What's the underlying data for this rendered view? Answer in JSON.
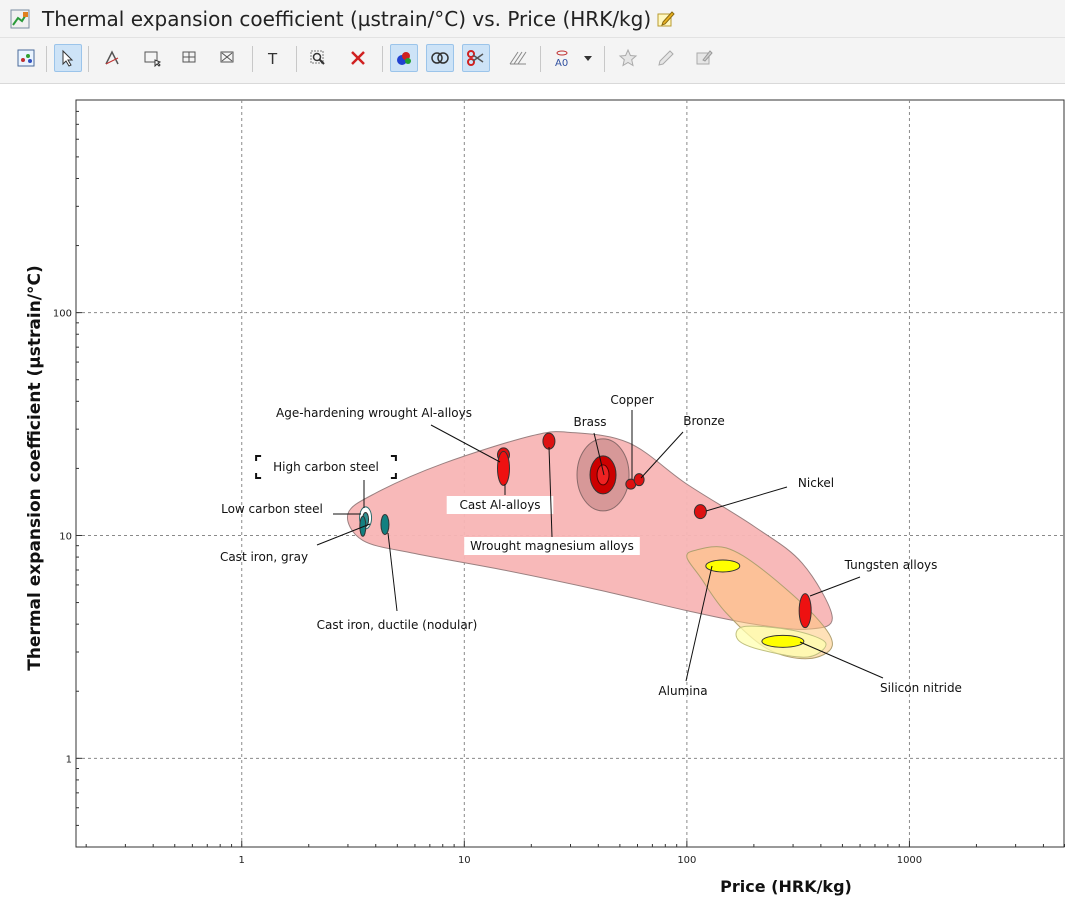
{
  "window": {
    "title": "Thermal expansion coefficient (µstrain/°C) vs. Price (HRK/kg)"
  },
  "toolbar": {
    "buttons": [
      {
        "name": "chart-settings-icon"
      },
      {
        "name": "select-pointer-icon",
        "active": true
      },
      {
        "name": "line-tool-icon"
      },
      {
        "name": "box-select-icon"
      },
      {
        "name": "grid-select-icon"
      },
      {
        "name": "delete-selection-icon"
      },
      {
        "name": "text-tool-icon"
      },
      {
        "name": "zoom-icon"
      },
      {
        "name": "clear-icon"
      },
      {
        "name": "colored-bubbles-icon",
        "active": true
      },
      {
        "name": "overlap-icon",
        "active": true
      },
      {
        "name": "scissors-icon",
        "active": true
      },
      {
        "name": "hatch-icon"
      },
      {
        "name": "label-icon"
      },
      {
        "name": "dropdown-arrow-icon"
      },
      {
        "name": "favorite-icon"
      },
      {
        "name": "pencil-icon"
      },
      {
        "name": "note-icon"
      }
    ]
  },
  "chart_data": {
    "type": "scatter",
    "title": "",
    "xlabel": "Price (HRK/kg)",
    "ylabel": "Thermal expansion coefficient (µstrain/°C)",
    "xscale": "log",
    "yscale": "log",
    "xlim": [
      0.18,
      5000
    ],
    "ylim": [
      0.4,
      900
    ],
    "x_ticks": [
      1,
      10,
      100,
      1000
    ],
    "x_tick_labels": [
      "1",
      "10",
      "100",
      "1000"
    ],
    "y_ticks": [
      1,
      10,
      100
    ],
    "y_tick_labels": [
      "1",
      "10",
      "100"
    ],
    "grid": true,
    "envelopes": [
      {
        "family": "metals",
        "color": "#f8b5b5",
        "stroke": "#9a8080",
        "points": [
          [
            3.0,
            12.5
          ],
          [
            4.0,
            15.5
          ],
          [
            8,
            21
          ],
          [
            20,
            28
          ],
          [
            30,
            29
          ],
          [
            55,
            26
          ],
          [
            100,
            17
          ],
          [
            200,
            11
          ],
          [
            330,
            7.5
          ],
          [
            450,
            4.3
          ],
          [
            350,
            3.8
          ],
          [
            200,
            4.0
          ],
          [
            100,
            4.6
          ],
          [
            40,
            5.7
          ],
          [
            15,
            7.0
          ],
          [
            6,
            8.3
          ],
          [
            3.5,
            9.5
          ]
        ]
      },
      {
        "family": "ceramics",
        "color": "#ffc87e",
        "stroke": "#b0a070",
        "opacity": 0.55,
        "points": [
          [
            110,
            8.6
          ],
          [
            150,
            8.8
          ],
          [
            220,
            7.0
          ],
          [
            380,
            4.3
          ],
          [
            450,
            3.2
          ],
          [
            350,
            2.8
          ],
          [
            230,
            3.1
          ],
          [
            150,
            4.5
          ],
          [
            115,
            6.5
          ],
          [
            100,
            8.0
          ]
        ]
      },
      {
        "family": "ceramics-light",
        "color": "#ffffb0",
        "stroke": "#c0c080",
        "opacity": 0.75,
        "points": [
          [
            180,
            3.9
          ],
          [
            300,
            3.75
          ],
          [
            420,
            3.3
          ],
          [
            350,
            2.85
          ],
          [
            220,
            3.05
          ],
          [
            170,
            3.4
          ]
        ]
      }
    ],
    "materials": [
      {
        "name": "Low carbon steel",
        "x": 3.6,
        "y": 12.0,
        "color": "#ffffff",
        "stroke": "#2b6b6b"
      },
      {
        "name": "High carbon steel",
        "x": 3.6,
        "y": 11.8,
        "color": "#2f8f8f"
      },
      {
        "name": "Cast iron, gray",
        "x": 3.5,
        "y": 11.0,
        "color": "#138080"
      },
      {
        "name": "Cast iron, ductile (nodular)",
        "x": 4.4,
        "y": 11.2,
        "color": "#138080"
      },
      {
        "name": "Age-hardening wrought Al-alloys",
        "x": 15,
        "y": 23,
        "color": "#dd1111"
      },
      {
        "name": "Cast Al-alloys",
        "x": 15,
        "y": 20,
        "color": "#ee1111"
      },
      {
        "name": "Wrought magnesium alloys",
        "x": 24,
        "y": 26.5,
        "color": "#dd1111"
      },
      {
        "name": "Brass",
        "x": 42,
        "y": 18.7,
        "color": "#cc0000"
      },
      {
        "name": "Copper",
        "x": 56,
        "y": 17.0,
        "color": "#dd1111"
      },
      {
        "name": "Bronze",
        "x": 61,
        "y": 17.8,
        "color": "#dd1111"
      },
      {
        "name": "Nickel",
        "x": 115,
        "y": 12.8,
        "color": "#dd1111"
      },
      {
        "name": "Tungsten alloys",
        "x": 340,
        "y": 4.6,
        "color": "#ee1111"
      },
      {
        "name": "Alumina",
        "x": 145,
        "y": 7.3,
        "color": "#ffff00"
      },
      {
        "name": "Silicon nitride",
        "x": 270,
        "y": 3.35,
        "color": "#ffff00"
      }
    ],
    "labels": [
      "Age-hardening wrought Al-alloys",
      "High carbon steel",
      "Low carbon steel",
      "Cast iron, gray",
      "Cast iron, ductile (nodular)",
      "Cast Al-alloys",
      "Wrought magnesium alloys",
      "Brass",
      "Copper",
      "Bronze",
      "Nickel",
      "Tungsten alloys",
      "Alumina",
      "Silicon nitride"
    ]
  }
}
